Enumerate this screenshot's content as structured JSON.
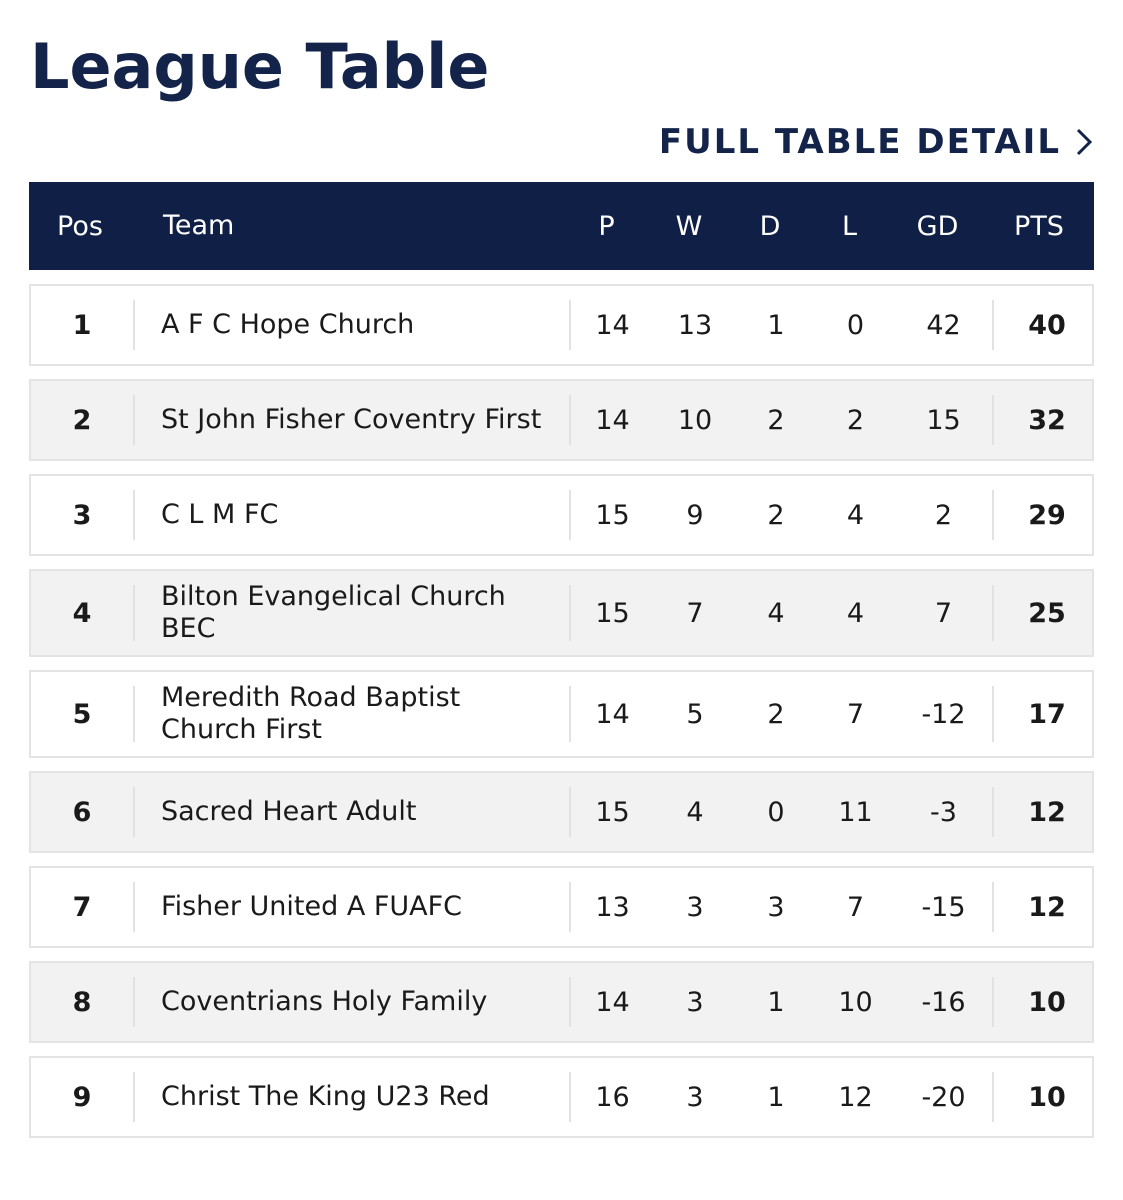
{
  "header": {
    "title": "League Table",
    "link": "FULL TABLE DETAIL"
  },
  "table": {
    "columns": [
      "Pos",
      "Team",
      "P",
      "W",
      "D",
      "L",
      "GD",
      "PTS"
    ],
    "rows": [
      [
        1,
        "A F C Hope Church",
        14,
        13,
        1,
        0,
        42,
        40
      ],
      [
        2,
        "St John Fisher Coventry First",
        14,
        10,
        2,
        2,
        15,
        32
      ],
      [
        3,
        "C L M FC",
        15,
        9,
        2,
        4,
        2,
        29
      ],
      [
        4,
        "Bilton Evangelical Church BEC",
        15,
        7,
        4,
        4,
        7,
        25
      ],
      [
        5,
        "Meredith Road Baptist Church First",
        14,
        5,
        2,
        7,
        -12,
        17
      ],
      [
        6,
        "Sacred Heart Adult",
        15,
        4,
        0,
        11,
        -3,
        12
      ],
      [
        7,
        "Fisher United A FUAFC",
        13,
        3,
        3,
        7,
        -15,
        12
      ],
      [
        8,
        "Coventrians Holy Family",
        14,
        3,
        1,
        10,
        -16,
        10
      ],
      [
        9,
        "Christ The King U23 Red",
        16,
        3,
        1,
        12,
        -20,
        10
      ]
    ]
  }
}
